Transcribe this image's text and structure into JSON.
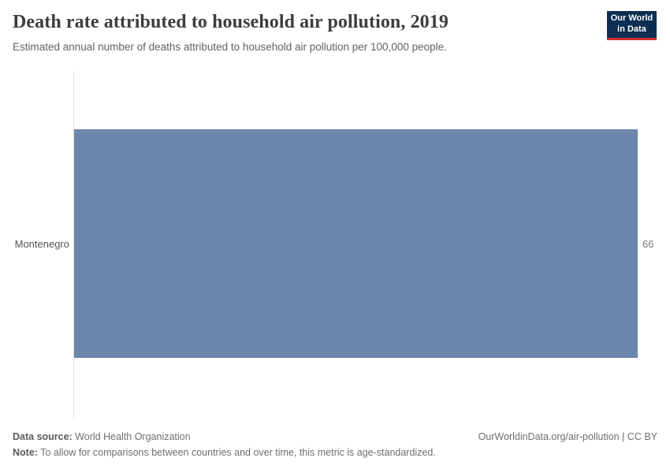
{
  "header": {
    "title": "Death rate attributed to household air pollution, 2019",
    "subtitle": "Estimated annual number of deaths attributed to household air pollution per 100,000 people.",
    "logo": {
      "line1": "Our World",
      "line2": "in Data",
      "bg_color": "#0d2e52",
      "accent_color": "#cf302c"
    }
  },
  "chart_data": {
    "type": "bar",
    "orientation": "horizontal",
    "title": "Death rate attributed to household air pollution, 2019",
    "subtitle": "Estimated annual number of deaths attributed to household air pollution per 100,000 people.",
    "categories": [
      "Montenegro"
    ],
    "values": [
      66
    ],
    "value_labels": [
      "66"
    ],
    "xlim": [
      0,
      66
    ],
    "xlabel": "",
    "ylabel": "",
    "grid": false,
    "legend": false,
    "bar_color": "#6d86ac",
    "axis_line_color": "#e2e2e2"
  },
  "footer": {
    "source_label": "Data source:",
    "source_value": " World Health Organization",
    "note_label": "Note:",
    "note_value": " To allow for comparisons between countries and over time, this metric is age-standardized.",
    "attribution": "OurWorldinData.org/air-pollution | CC BY"
  }
}
